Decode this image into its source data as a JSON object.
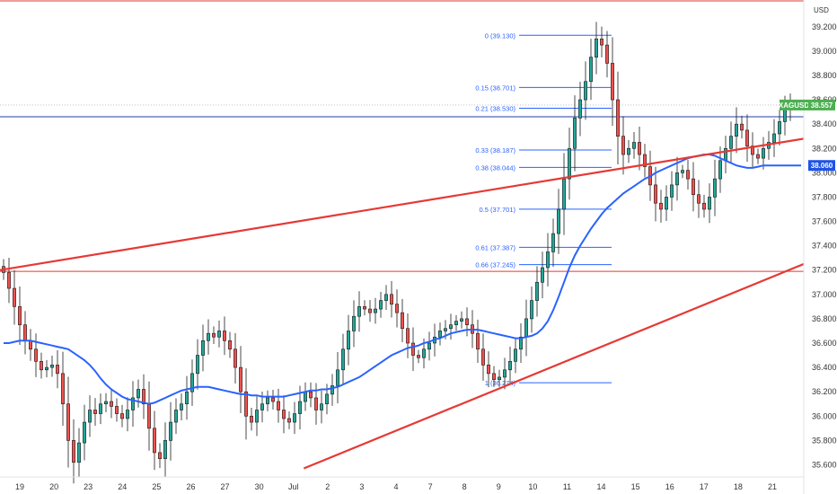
{
  "chart_data": {
    "type": "candlestick",
    "currency": "USD",
    "symbol": "XAGUSD",
    "last_price": "38.557",
    "ma_price": "38.060",
    "ylim": [
      35.5,
      39.42
    ],
    "y_ticks": [
      "35.600",
      "35.800",
      "36.000",
      "36.200",
      "36.400",
      "36.600",
      "36.800",
      "37.000",
      "37.200",
      "37.400",
      "37.600",
      "37.800",
      "38.000",
      "38.200",
      "38.400",
      "38.600",
      "38.800",
      "39.000",
      "39.200"
    ],
    "x_ticks": [
      "19",
      "20",
      "23",
      "24",
      "25",
      "26",
      "27",
      "30",
      "Jul",
      "2",
      "3",
      "4",
      "7",
      "8",
      "9",
      "10",
      "11",
      "14",
      "15",
      "16",
      "17",
      "18",
      "21"
    ],
    "close_series": [
      37.18,
      37.05,
      36.9,
      36.75,
      36.62,
      36.55,
      36.45,
      36.38,
      36.4,
      36.42,
      36.35,
      36.1,
      35.8,
      35.62,
      35.78,
      35.95,
      36.05,
      36.02,
      36.1,
      36.12,
      36.08,
      36.02,
      35.98,
      36.05,
      36.15,
      36.22,
      36.1,
      35.9,
      35.7,
      35.65,
      35.8,
      35.95,
      36.05,
      36.1,
      36.2,
      36.35,
      36.5,
      36.62,
      36.68,
      36.65,
      36.7,
      36.62,
      36.55,
      36.4,
      36.2,
      36.0,
      35.95,
      36.05,
      36.1,
      36.15,
      36.12,
      36.05,
      35.98,
      35.95,
      36.02,
      36.12,
      36.2,
      36.15,
      36.05,
      36.1,
      36.18,
      36.25,
      36.38,
      36.55,
      36.7,
      36.82,
      36.9,
      36.88,
      36.85,
      36.88,
      36.95,
      37.0,
      36.92,
      36.85,
      36.72,
      36.6,
      36.5,
      36.48,
      36.55,
      36.6,
      36.65,
      36.7,
      36.72,
      36.75,
      36.78,
      36.8,
      36.75,
      36.68,
      36.55,
      36.42,
      36.35,
      36.3,
      36.32,
      36.38,
      36.45,
      36.55,
      36.65,
      36.8,
      36.95,
      37.1,
      37.22,
      37.35,
      37.5,
      37.7,
      37.95,
      38.2,
      38.45,
      38.6,
      38.75,
      38.95,
      39.1,
      39.05,
      38.9,
      38.6,
      38.3,
      38.15,
      38.2,
      38.25,
      38.15,
      38.05,
      37.9,
      37.75,
      37.7,
      37.8,
      37.9,
      38.0,
      38.02,
      37.95,
      37.82,
      37.75,
      37.7,
      37.8,
      37.95,
      38.1,
      38.2,
      38.3,
      38.4,
      38.35,
      38.22,
      38.15,
      38.12,
      38.2,
      38.25,
      38.32,
      38.42,
      38.52,
      38.557
    ],
    "ma_series": [
      36.6,
      36.6,
      36.61,
      36.62,
      36.62,
      36.62,
      36.61,
      36.6,
      36.59,
      36.58,
      36.57,
      36.56,
      36.55,
      36.52,
      36.49,
      36.46,
      36.42,
      36.37,
      36.31,
      36.26,
      36.22,
      36.19,
      36.16,
      36.14,
      36.13,
      36.12,
      36.11,
      36.1,
      36.11,
      36.13,
      36.15,
      36.17,
      36.19,
      36.21,
      36.22,
      36.23,
      36.24,
      36.24,
      36.24,
      36.23,
      36.22,
      36.21,
      36.2,
      36.19,
      36.18,
      36.18,
      36.17,
      36.17,
      36.16,
      36.16,
      36.16,
      36.16,
      36.16,
      36.17,
      36.18,
      36.19,
      36.2,
      36.21,
      36.21,
      36.22,
      36.22,
      36.23,
      36.24,
      36.26,
      36.28,
      36.3,
      36.32,
      36.35,
      36.38,
      36.41,
      36.44,
      36.47,
      36.5,
      36.52,
      36.54,
      36.56,
      36.57,
      36.58,
      36.6,
      36.61,
      36.63,
      36.64,
      36.66,
      36.68,
      36.69,
      36.7,
      36.71,
      36.71,
      36.71,
      36.7,
      36.69,
      36.68,
      36.67,
      36.66,
      36.65,
      36.64,
      36.64,
      36.65,
      36.66,
      36.68,
      36.72,
      36.78,
      36.87,
      36.98,
      37.1,
      37.22,
      37.32,
      37.4,
      37.47,
      37.54,
      37.6,
      37.66,
      37.71,
      37.75,
      37.79,
      37.83,
      37.86,
      37.89,
      37.92,
      37.95,
      37.97,
      38.0,
      38.02,
      38.04,
      38.06,
      38.08,
      38.1,
      38.12,
      38.13,
      38.14,
      38.15,
      38.15,
      38.14,
      38.12,
      38.1,
      38.08,
      38.06,
      38.05,
      38.04,
      38.04,
      38.05,
      38.06,
      38.06,
      38.06,
      38.06,
      38.06,
      38.06,
      38.06,
      38.06
    ],
    "fib_levels": [
      {
        "label": "0 (39.130)",
        "value": 39.13
      },
      {
        "label": "0.15 (38.701)",
        "value": 38.701
      },
      {
        "label": "0.21 (38.530)",
        "value": 38.53
      },
      {
        "label": "0.33 (38.187)",
        "value": 38.187
      },
      {
        "label": "0.38 (38.044)",
        "value": 38.044
      },
      {
        "label": "0.5 (37.701)",
        "value": 37.701
      },
      {
        "label": "0.61 (37.387)",
        "value": 37.387
      },
      {
        "label": "0.66 (37.245)",
        "value": 37.245
      },
      {
        "label": "1 (36.274)",
        "value": 36.274
      }
    ],
    "horizontal_levels": [
      {
        "value": 39.42,
        "color": "#e53935"
      },
      {
        "value": 38.46,
        "color": "#1e3fa8"
      },
      {
        "value": 37.19,
        "color": "#e53935"
      }
    ],
    "trendlines": [
      {
        "from": [
          0,
          37.2
        ],
        "to": [
          1,
          38.28
        ],
        "color": "#e53935"
      },
      {
        "from": [
          0.378,
          35.57
        ],
        "to": [
          1,
          37.25
        ],
        "color": "#e53935"
      }
    ],
    "colors": {
      "up": "#26a69a",
      "down": "#ef5350",
      "candle_body": "#1b1b1b",
      "ma": "#2962ff",
      "fib": "#2962ff",
      "price_badge": "#4caf50",
      "ma_badge": "#1e53e5"
    }
  }
}
